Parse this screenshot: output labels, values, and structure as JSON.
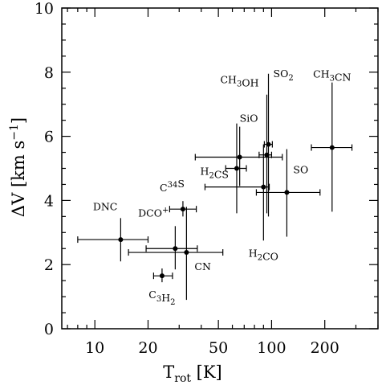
{
  "chart_data": {
    "type": "scatter",
    "title": "",
    "xscale": "log",
    "xlim": [
      6.5,
      400
    ],
    "ylim": [
      0,
      10
    ],
    "x_ticks": [
      10,
      20,
      50,
      100,
      200
    ],
    "x_tick_labels": [
      "10",
      "20",
      "50",
      "100",
      "200"
    ],
    "y_ticks": [
      0,
      2,
      4,
      6,
      8,
      10
    ],
    "y_tick_labels": [
      "0",
      "2",
      "4",
      "6",
      "8",
      "10"
    ],
    "xlabel": {
      "main": "T",
      "sub": "rot",
      "unit": " [K]"
    },
    "ylabel": {
      "main": "ΔV [km s",
      "sup": "−1",
      "tail": "]"
    },
    "grid": false,
    "points": [
      {
        "name": "DNC",
        "label_parts": [
          [
            "DNC",
            ""
          ]
        ],
        "x": 14,
        "y": 2.78,
        "xerr": [
          8,
          20
        ],
        "yerr": [
          2.1,
          3.45
        ],
        "label_pos": "upper-left"
      },
      {
        "name": "DCO+",
        "label_parts": [
          [
            "DCO",
            ""
          ],
          [
            "+",
            "sup"
          ]
        ],
        "x": 28.5,
        "y": 2.5,
        "xerr": [
          19.5,
          38
        ],
        "yerr": [
          1.85,
          3.2
        ],
        "label_pos": "upper-left"
      },
      {
        "name": "CN",
        "label_parts": [
          [
            "CN",
            ""
          ]
        ],
        "x": 33,
        "y": 2.38,
        "xerr": [
          15.5,
          53
        ],
        "yerr": [
          0.9,
          3.8
        ],
        "label_pos": "lower-right"
      },
      {
        "name": "C34S",
        "label_parts": [
          [
            "C",
            ""
          ],
          [
            "34",
            "sup"
          ],
          [
            "S",
            ""
          ]
        ],
        "x": 31.5,
        "y": 3.73,
        "xerr": [
          26.5,
          37.5
        ],
        "yerr": [
          3.5,
          3.98
        ],
        "label_pos": "upper-left"
      },
      {
        "name": "C3H2",
        "label_parts": [
          [
            "C",
            ""
          ],
          [
            "3",
            "sub"
          ],
          [
            "H",
            ""
          ],
          [
            "2",
            "sub"
          ]
        ],
        "x": 24,
        "y": 1.65,
        "xerr": [
          21.5,
          27.5
        ],
        "yerr": [
          1.45,
          1.88
        ],
        "label_pos": "below"
      },
      {
        "name": "H2CS",
        "label_parts": [
          [
            "H",
            ""
          ],
          [
            "2",
            "sub"
          ],
          [
            "CS",
            ""
          ]
        ],
        "x": 63.5,
        "y": 5.0,
        "xerr": [
          55,
          72
        ],
        "yerr": [
          3.6,
          6.4
        ],
        "label_pos": "left"
      },
      {
        "name": "SiO",
        "label_parts": [
          [
            "SiO",
            ""
          ]
        ],
        "x": 66,
        "y": 5.35,
        "xerr": [
          37,
          115
        ],
        "yerr": [
          4.45,
          6.3
        ],
        "label_pos": "above"
      },
      {
        "name": "H2CO",
        "label_parts": [
          [
            "H",
            ""
          ],
          [
            "2",
            "sub"
          ],
          [
            "CO",
            ""
          ]
        ],
        "x": 90,
        "y": 4.42,
        "xerr": [
          42,
          97
        ],
        "yerr": [
          2.75,
          5.75
        ],
        "label_pos": "below"
      },
      {
        "name": "CH3OH",
        "label_parts": [
          [
            "CH",
            ""
          ],
          [
            "3",
            "sub"
          ],
          [
            "OH",
            ""
          ]
        ],
        "x": 94,
        "y": 5.42,
        "xerr": [
          85,
          100
        ],
        "yerr": [
          3.6,
          7.3
        ],
        "label_pos": "left"
      },
      {
        "name": "SO2",
        "label_parts": [
          [
            "SO",
            ""
          ],
          [
            "2",
            "sub"
          ]
        ],
        "x": 96,
        "y": 5.75,
        "xerr": [
          91,
          101
        ],
        "yerr": [
          3.5,
          7.95
        ],
        "label_pos": "upper-right"
      },
      {
        "name": "SO",
        "label_parts": [
          [
            "SO",
            ""
          ]
        ],
        "x": 122,
        "y": 4.25,
        "xerr": [
          82,
          188
        ],
        "yerr": [
          2.87,
          5.6
        ],
        "label_pos": "upper-right"
      },
      {
        "name": "CH3CN",
        "label_parts": [
          [
            "CH",
            ""
          ],
          [
            "3",
            "sub"
          ],
          [
            "CN",
            ""
          ]
        ],
        "x": 220,
        "y": 5.65,
        "xerr": [
          168,
          285
        ],
        "yerr": [
          3.65,
          7.68
        ],
        "label_pos": "above"
      }
    ]
  }
}
